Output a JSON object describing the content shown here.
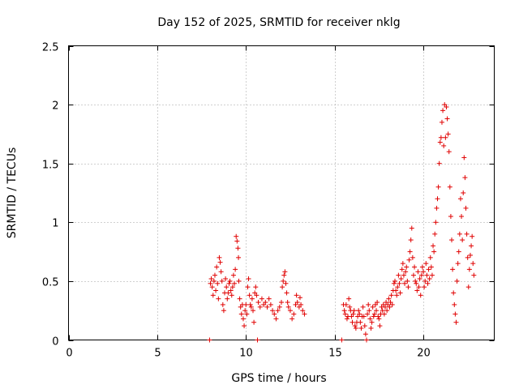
{
  "chart_data": {
    "type": "scatter",
    "title": "Day 152 of 2025, SRMTID for receiver nklg",
    "xlabel": "GPS time / hours",
    "ylabel": "SRMTID / TECUs",
    "xlim": [
      0,
      24
    ],
    "ylim": [
      0,
      2.5
    ],
    "xticks": [
      0,
      5,
      10,
      15,
      20
    ],
    "xtick_labels": [
      "0",
      "5",
      "10",
      "15",
      "20"
    ],
    "yticks": [
      0,
      0.5,
      1,
      1.5,
      2,
      2.5
    ],
    "ytick_labels": [
      "0",
      "0.5",
      "1",
      "1.5",
      "2",
      "2.5"
    ],
    "grid": true,
    "marker": "+",
    "marker_color": "#e00000",
    "series": [
      {
        "name": "SRMTID",
        "points": [
          [
            7.95,
            0.0
          ],
          [
            8.0,
            0.48
          ],
          [
            8.05,
            0.52
          ],
          [
            8.1,
            0.45
          ],
          [
            8.15,
            0.38
          ],
          [
            8.2,
            0.5
          ],
          [
            8.25,
            0.55
          ],
          [
            8.3,
            0.42
          ],
          [
            8.35,
            0.62
          ],
          [
            8.4,
            0.48
          ],
          [
            8.45,
            0.35
          ],
          [
            8.5,
            0.7
          ],
          [
            8.55,
            0.66
          ],
          [
            8.6,
            0.58
          ],
          [
            8.65,
            0.5
          ],
          [
            8.7,
            0.3
          ],
          [
            8.75,
            0.25
          ],
          [
            8.8,
            0.4
          ],
          [
            8.85,
            0.52
          ],
          [
            8.9,
            0.45
          ],
          [
            8.95,
            0.35
          ],
          [
            9.0,
            0.4
          ],
          [
            9.05,
            0.48
          ],
          [
            9.1,
            0.5
          ],
          [
            9.15,
            0.42
          ],
          [
            9.2,
            0.38
          ],
          [
            9.25,
            0.45
          ],
          [
            9.3,
            0.55
          ],
          [
            9.35,
            0.48
          ],
          [
            9.4,
            0.6
          ],
          [
            9.45,
            0.88
          ],
          [
            9.5,
            0.84
          ],
          [
            9.55,
            0.78
          ],
          [
            9.58,
            0.7
          ],
          [
            9.6,
            0.5
          ],
          [
            9.65,
            0.35
          ],
          [
            9.7,
            0.28
          ],
          [
            9.75,
            0.22
          ],
          [
            9.8,
            0.3
          ],
          [
            9.85,
            0.18
          ],
          [
            9.9,
            0.12
          ],
          [
            9.95,
            0.25
          ],
          [
            10.0,
            0.3
          ],
          [
            10.05,
            0.22
          ],
          [
            10.1,
            0.45
          ],
          [
            10.15,
            0.52
          ],
          [
            10.2,
            0.38
          ],
          [
            10.25,
            0.3
          ],
          [
            10.3,
            0.28
          ],
          [
            10.35,
            0.35
          ],
          [
            10.4,
            0.25
          ],
          [
            10.45,
            0.15
          ],
          [
            10.5,
            0.4
          ],
          [
            10.55,
            0.45
          ],
          [
            10.6,
            0.38
          ],
          [
            10.65,
            0.0
          ],
          [
            10.7,
            0.32
          ],
          [
            10.8,
            0.28
          ],
          [
            10.9,
            0.35
          ],
          [
            11.0,
            0.3
          ],
          [
            11.1,
            0.32
          ],
          [
            11.2,
            0.28
          ],
          [
            11.3,
            0.35
          ],
          [
            11.4,
            0.3
          ],
          [
            11.5,
            0.25
          ],
          [
            11.6,
            0.22
          ],
          [
            11.7,
            0.18
          ],
          [
            11.8,
            0.25
          ],
          [
            11.9,
            0.28
          ],
          [
            12.0,
            0.32
          ],
          [
            12.05,
            0.45
          ],
          [
            12.1,
            0.5
          ],
          [
            12.15,
            0.55
          ],
          [
            12.2,
            0.58
          ],
          [
            12.25,
            0.48
          ],
          [
            12.3,
            0.4
          ],
          [
            12.35,
            0.32
          ],
          [
            12.4,
            0.28
          ],
          [
            12.5,
            0.25
          ],
          [
            12.6,
            0.18
          ],
          [
            12.7,
            0.22
          ],
          [
            12.8,
            0.3
          ],
          [
            12.85,
            0.38
          ],
          [
            12.9,
            0.32
          ],
          [
            13.0,
            0.28
          ],
          [
            13.05,
            0.36
          ],
          [
            13.1,
            0.3
          ],
          [
            13.2,
            0.25
          ],
          [
            13.3,
            0.22
          ],
          [
            15.4,
            0.0
          ],
          [
            15.5,
            0.3
          ],
          [
            15.55,
            0.25
          ],
          [
            15.6,
            0.22
          ],
          [
            15.65,
            0.3
          ],
          [
            15.7,
            0.18
          ],
          [
            15.75,
            0.2
          ],
          [
            15.8,
            0.35
          ],
          [
            15.85,
            0.28
          ],
          [
            15.9,
            0.25
          ],
          [
            15.95,
            0.2
          ],
          [
            16.0,
            0.15
          ],
          [
            16.05,
            0.22
          ],
          [
            16.1,
            0.25
          ],
          [
            16.15,
            0.12
          ],
          [
            16.2,
            0.1
          ],
          [
            16.25,
            0.15
          ],
          [
            16.3,
            0.2
          ],
          [
            16.35,
            0.25
          ],
          [
            16.4,
            0.22
          ],
          [
            16.45,
            0.15
          ],
          [
            16.5,
            0.1
          ],
          [
            16.55,
            0.2
          ],
          [
            16.6,
            0.28
          ],
          [
            16.65,
            0.2
          ],
          [
            16.7,
            0.12
          ],
          [
            16.75,
            0.05
          ],
          [
            16.8,
            0.0
          ],
          [
            16.85,
            0.22
          ],
          [
            16.9,
            0.3
          ],
          [
            16.95,
            0.25
          ],
          [
            17.0,
            0.18
          ],
          [
            17.05,
            0.1
          ],
          [
            17.1,
            0.15
          ],
          [
            17.15,
            0.28
          ],
          [
            17.2,
            0.2
          ],
          [
            17.25,
            0.22
          ],
          [
            17.3,
            0.3
          ],
          [
            17.35,
            0.25
          ],
          [
            17.4,
            0.32
          ],
          [
            17.45,
            0.2
          ],
          [
            17.5,
            0.18
          ],
          [
            17.55,
            0.12
          ],
          [
            17.6,
            0.22
          ],
          [
            17.65,
            0.28
          ],
          [
            17.7,
            0.25
          ],
          [
            17.75,
            0.3
          ],
          [
            17.8,
            0.22
          ],
          [
            17.85,
            0.28
          ],
          [
            17.9,
            0.32
          ],
          [
            17.95,
            0.25
          ],
          [
            18.0,
            0.3
          ],
          [
            18.05,
            0.35
          ],
          [
            18.1,
            0.28
          ],
          [
            18.15,
            0.32
          ],
          [
            18.2,
            0.38
          ],
          [
            18.25,
            0.3
          ],
          [
            18.3,
            0.42
          ],
          [
            18.35,
            0.48
          ],
          [
            18.4,
            0.5
          ],
          [
            18.45,
            0.42
          ],
          [
            18.5,
            0.38
          ],
          [
            18.55,
            0.45
          ],
          [
            18.6,
            0.55
          ],
          [
            18.65,
            0.48
          ],
          [
            18.7,
            0.4
          ],
          [
            18.75,
            0.52
          ],
          [
            18.8,
            0.6
          ],
          [
            18.85,
            0.65
          ],
          [
            18.9,
            0.55
          ],
          [
            18.95,
            0.48
          ],
          [
            19.0,
            0.58
          ],
          [
            19.05,
            0.62
          ],
          [
            19.1,
            0.5
          ],
          [
            19.15,
            0.45
          ],
          [
            19.2,
            0.68
          ],
          [
            19.25,
            0.75
          ],
          [
            19.3,
            0.85
          ],
          [
            19.35,
            0.95
          ],
          [
            19.4,
            0.7
          ],
          [
            19.45,
            0.55
          ],
          [
            19.5,
            0.62
          ],
          [
            19.55,
            0.5
          ],
          [
            19.6,
            0.48
          ],
          [
            19.65,
            0.42
          ],
          [
            19.7,
            0.58
          ],
          [
            19.75,
            0.45
          ],
          [
            19.8,
            0.52
          ],
          [
            19.85,
            0.38
          ],
          [
            19.9,
            0.55
          ],
          [
            19.95,
            0.62
          ],
          [
            20.0,
            0.58
          ],
          [
            20.05,
            0.45
          ],
          [
            20.1,
            0.5
          ],
          [
            20.15,
            0.65
          ],
          [
            20.2,
            0.55
          ],
          [
            20.25,
            0.48
          ],
          [
            20.3,
            0.6
          ],
          [
            20.35,
            0.52
          ],
          [
            20.4,
            0.7
          ],
          [
            20.45,
            0.62
          ],
          [
            20.5,
            0.55
          ],
          [
            20.55,
            0.8
          ],
          [
            20.6,
            0.75
          ],
          [
            20.65,
            0.9
          ],
          [
            20.7,
            1.0
          ],
          [
            20.75,
            1.12
          ],
          [
            20.8,
            1.2
          ],
          [
            20.85,
            1.3
          ],
          [
            20.9,
            1.5
          ],
          [
            20.95,
            1.68
          ],
          [
            21.0,
            1.72
          ],
          [
            21.05,
            1.85
          ],
          [
            21.1,
            1.95
          ],
          [
            21.15,
            1.65
          ],
          [
            21.2,
            2.0
          ],
          [
            21.25,
            1.72
          ],
          [
            21.3,
            1.98
          ],
          [
            21.35,
            1.88
          ],
          [
            21.4,
            1.75
          ],
          [
            21.45,
            1.6
          ],
          [
            21.5,
            1.3
          ],
          [
            21.55,
            1.05
          ],
          [
            21.6,
            0.85
          ],
          [
            21.65,
            0.6
          ],
          [
            21.7,
            0.4
          ],
          [
            21.75,
            0.3
          ],
          [
            21.8,
            0.22
          ],
          [
            21.85,
            0.15
          ],
          [
            21.9,
            0.5
          ],
          [
            21.95,
            0.65
          ],
          [
            22.0,
            0.75
          ],
          [
            22.05,
            0.9
          ],
          [
            22.1,
            1.2
          ],
          [
            22.15,
            1.05
          ],
          [
            22.2,
            0.85
          ],
          [
            22.25,
            1.25
          ],
          [
            22.3,
            1.55
          ],
          [
            22.35,
            1.38
          ],
          [
            22.4,
            1.12
          ],
          [
            22.45,
            0.9
          ],
          [
            22.5,
            0.7
          ],
          [
            22.55,
            0.45
          ],
          [
            22.6,
            0.6
          ],
          [
            22.65,
            0.72
          ],
          [
            22.7,
            0.8
          ],
          [
            22.75,
            0.88
          ],
          [
            22.8,
            0.65
          ],
          [
            22.85,
            0.55
          ]
        ]
      }
    ]
  }
}
